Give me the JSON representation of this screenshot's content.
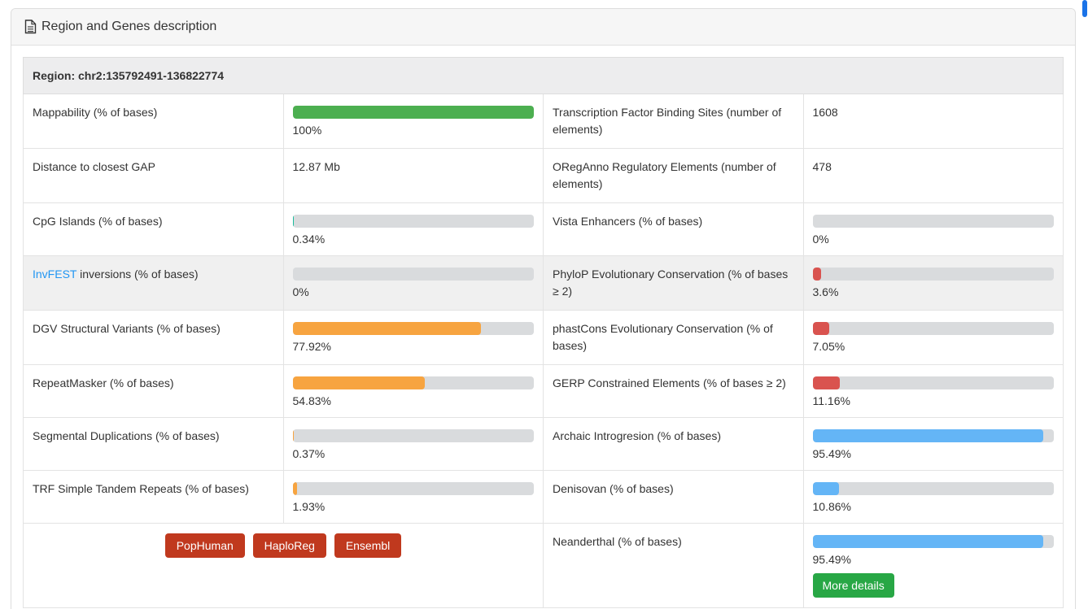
{
  "page": {
    "title": "Region and Genes description"
  },
  "colors": {
    "green": "#4caf50",
    "teal": "#1abc9c",
    "orange": "#f7a440",
    "red": "#d9534f",
    "blue": "#64b5f6",
    "track_gray": "#d9dbdd",
    "button_brick": "#c0391e",
    "button_green": "#28a745",
    "link_blue": "#2196f3",
    "scrollbar_thumb": "#1a73e8"
  },
  "table": {
    "region_header": "Region: chr2:135792491-136822774",
    "rows": [
      {
        "left": {
          "label": "Mappability (% of bases)",
          "bar": {
            "percent": 100,
            "color": "green",
            "text": "100%"
          }
        },
        "right": {
          "label": "Transcription Factor Binding Sites (number of elements)",
          "value": "1608"
        }
      },
      {
        "left": {
          "label": "Distance to closest GAP",
          "value": "12.87 Mb"
        },
        "right": {
          "label": "ORegAnno Regulatory Elements (number of elements)",
          "value": "478"
        }
      },
      {
        "left": {
          "label": "CpG Islands (% of bases)",
          "bar": {
            "percent": 0.34,
            "color": "teal",
            "text": "0.34%"
          }
        },
        "right": {
          "label": "Vista Enhancers (% of bases)",
          "bar": {
            "percent": 0,
            "color": null,
            "text": "0%"
          }
        }
      },
      {
        "left": {
          "label_link": "InvFEST",
          "label_rest": " inversions (% of bases)",
          "bar": {
            "percent": 0,
            "color": null,
            "text": "0%"
          }
        },
        "right": {
          "label": "PhyloP Evolutionary Conservation (% of bases ≥ 2)",
          "bar": {
            "percent": 3.6,
            "color": "red",
            "text": "3.6%"
          }
        }
      },
      {
        "left": {
          "label": "DGV Structural Variants (% of bases)",
          "bar": {
            "percent": 77.92,
            "color": "orange",
            "text": "77.92%"
          }
        },
        "right": {
          "label": "phastCons Evolutionary Conservation (% of bases)",
          "bar": {
            "percent": 7.05,
            "color": "red",
            "text": "7.05%"
          }
        }
      },
      {
        "left": {
          "label": "RepeatMasker (% of bases)",
          "bar": {
            "percent": 54.83,
            "color": "orange",
            "text": "54.83%"
          }
        },
        "right": {
          "label": "GERP Constrained Elements (% of bases ≥ 2)",
          "bar": {
            "percent": 11.16,
            "color": "red",
            "text": "11.16%"
          }
        }
      },
      {
        "left": {
          "label": "Segmental Duplications (% of bases)",
          "bar": {
            "percent": 0.37,
            "color": "orange",
            "text": "0.37%"
          }
        },
        "right": {
          "label": "Archaic Introgresion (% of bases)",
          "bar": {
            "percent": 95.49,
            "color": "blue",
            "text": "95.49%"
          }
        }
      },
      {
        "left": {
          "label": "TRF Simple Tandem Repeats (% of bases)",
          "bar": {
            "percent": 1.93,
            "color": "orange",
            "text": "1.93%"
          }
        },
        "right": {
          "label": "Denisovan (% of bases)",
          "bar": {
            "percent": 10.86,
            "color": "blue",
            "text": "10.86%"
          }
        }
      },
      {
        "left": {
          "buttons": [
            "PopHuman",
            "HaploReg",
            "Ensembl"
          ]
        },
        "right": {
          "label": "Neanderthal (% of bases)",
          "bar": {
            "percent": 95.49,
            "color": "blue",
            "text": "95.49%"
          },
          "more_details": "More details"
        }
      }
    ]
  }
}
